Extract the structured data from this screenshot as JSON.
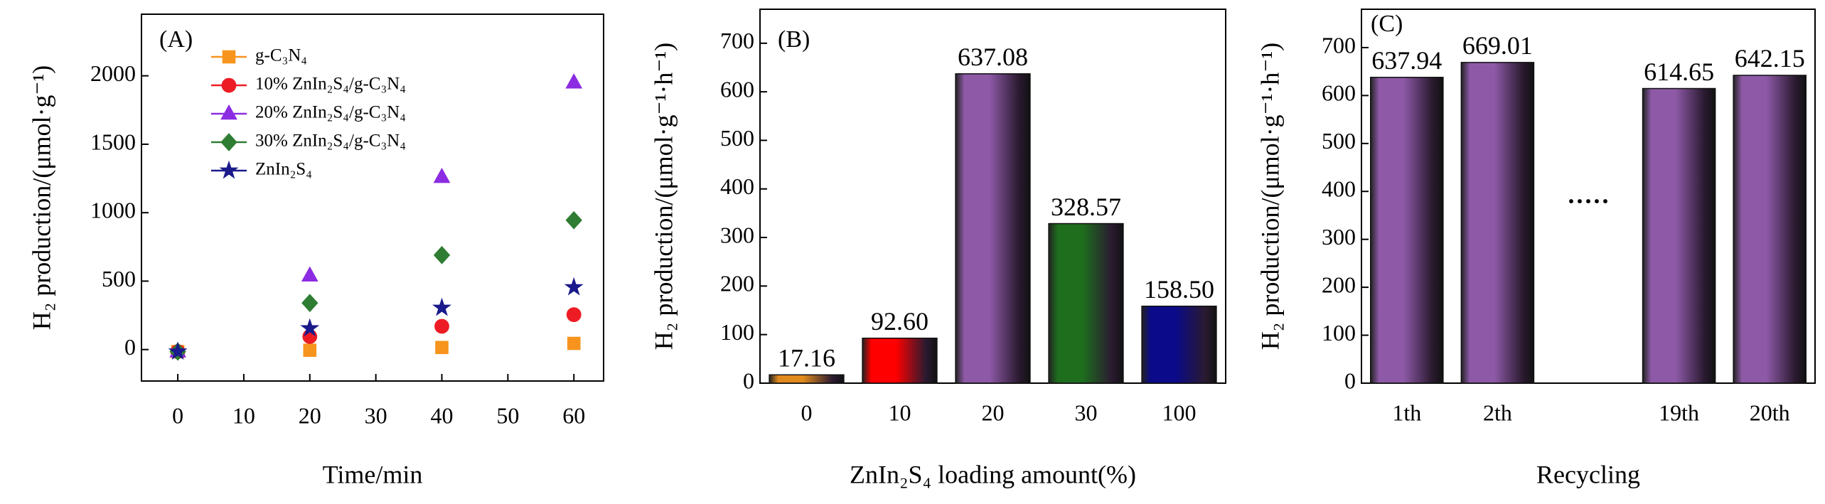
{
  "chart_data": [
    {
      "type": "line",
      "title": "(A)",
      "xlabel": "Time/min",
      "ylabel": "H₂ production/(μmol·g⁻¹)",
      "x": [
        0,
        20,
        40,
        60
      ],
      "series": [
        {
          "name": "g-C₃N₄",
          "color": "#f7941d",
          "marker": "square",
          "values": [
            -15,
            -5,
            15,
            45
          ]
        },
        {
          "name": "10% ZnIn₂S₄/g-C₃N₄",
          "color": "#ed1c24",
          "marker": "circle",
          "values": [
            -15,
            95,
            170,
            255
          ]
        },
        {
          "name": "20% ZnIn₂S₄/g-C₃N₄",
          "color": "#8b2be2",
          "marker": "triangle",
          "values": [
            -15,
            540,
            1260,
            1950
          ]
        },
        {
          "name": "30% ZnIn₂S₄/g-C₃N₄",
          "color": "#2e7d32",
          "marker": "diamond",
          "values": [
            -15,
            340,
            690,
            945
          ]
        },
        {
          "name": "ZnIn₂S₄",
          "color": "#1a1a8c",
          "marker": "star",
          "values": [
            -15,
            155,
            305,
            455
          ]
        }
      ],
      "xlim": [
        -5.5,
        64.5
      ],
      "xticks": [
        0,
        10,
        20,
        30,
        40,
        50,
        60
      ],
      "ylim": [
        -230,
        2450
      ],
      "yticks": [
        0,
        500,
        1000,
        1500,
        2000
      ],
      "legend": "upper left"
    },
    {
      "type": "bar",
      "title": "(B)",
      "xlabel": "ZnIn₂S₄ loading amount(%)",
      "ylabel": "H₂ production/(μmol·g⁻¹·h⁻¹)",
      "categories": [
        "0",
        "10",
        "20",
        "30",
        "100"
      ],
      "values": [
        17.16,
        92.6,
        637.08,
        328.57,
        158.5
      ],
      "value_labels": [
        "17.16",
        "92.60",
        "637.08",
        "328.57",
        "158.50"
      ],
      "colors": [
        "#e08a1e",
        "#ff0000",
        "#8e5aa8",
        "#1e6e1e",
        "#0a0a8a"
      ],
      "ylim": [
        0,
        770
      ],
      "yticks": [
        0,
        100,
        200,
        300,
        400,
        500,
        600,
        700
      ]
    },
    {
      "type": "bar",
      "title": "(C)",
      "xlabel": "Recycling",
      "ylabel": "H₂ production/(μmol·g⁻¹·h⁻¹)",
      "categories": [
        "1th",
        "2th",
        null,
        "19th",
        "20th"
      ],
      "values": [
        637.94,
        669.01,
        null,
        614.65,
        642.15
      ],
      "value_labels": [
        "637.94",
        "669.01",
        null,
        "614.65",
        "642.15"
      ],
      "colors": [
        "#8e5aa8",
        "#8e5aa8",
        "#8e5aa8",
        "#8e5aa8",
        "#8e5aa8"
      ],
      "annotation": "·····",
      "ylim": [
        0,
        780
      ],
      "yticks": [
        0,
        100,
        200,
        300,
        400,
        500,
        600,
        700
      ]
    }
  ]
}
